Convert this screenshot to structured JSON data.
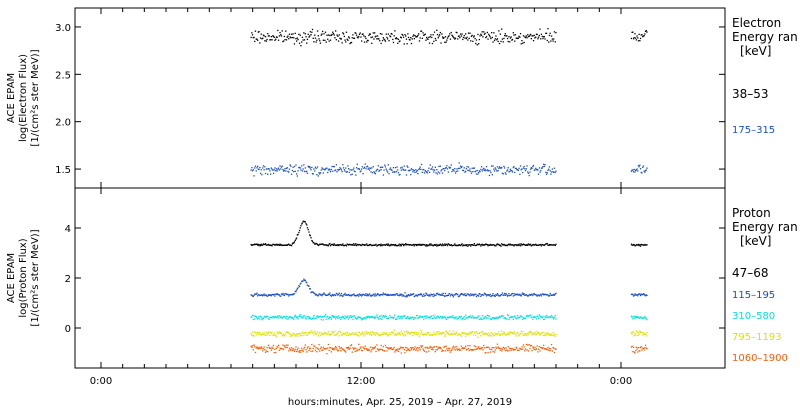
{
  "chart_data": [
    {
      "type": "scatter",
      "panel": "electron",
      "ylabel_lines": [
        "ACE EPAM",
        "log(Electron Flux)",
        "[1/(cm²s ster MeV)]"
      ],
      "legend_title_lines": [
        "Electron",
        "Energy ran",
        "[keV]"
      ],
      "yticks": [
        1.5,
        2.0,
        2.5,
        3.0
      ],
      "ylim": [
        1.3,
        3.2
      ],
      "series": [
        {
          "name": "38–53",
          "color": "#000000",
          "base": 2.9,
          "noise": 0.06,
          "segments": [
            [
              0.27,
              0.74
            ],
            [
              0.855,
              0.88
            ]
          ]
        },
        {
          "name": "175–315",
          "color": "#1a4fc2",
          "base": 1.5,
          "noise": 0.05,
          "segments": [
            [
              0.27,
              0.74
            ],
            [
              0.855,
              0.88
            ]
          ]
        }
      ]
    },
    {
      "type": "scatter",
      "panel": "proton",
      "ylabel_lines": [
        "ACE EPAM",
        "log(Proton Flux)",
        "[1/(cm²s ster MeV)]"
      ],
      "legend_title_lines": [
        "Proton",
        "Energy ran",
        "[keV]"
      ],
      "yticks": [
        0,
        2,
        4
      ],
      "ylim": [
        -1.6,
        5.6
      ],
      "series": [
        {
          "name": "47–68",
          "color": "#000000",
          "base": 3.35,
          "noise": 0.04,
          "spike": 0.95,
          "segments": [
            [
              0.27,
              0.74
            ],
            [
              0.855,
              0.88
            ]
          ]
        },
        {
          "name": "115–195",
          "color": "#1a4fc2",
          "base": 1.35,
          "noise": 0.06,
          "spike": 0.6,
          "segments": [
            [
              0.27,
              0.74
            ],
            [
              0.855,
              0.88
            ]
          ]
        },
        {
          "name": "310–580",
          "color": "#00e0e0",
          "base": 0.45,
          "noise": 0.08,
          "segments": [
            [
              0.27,
              0.74
            ],
            [
              0.855,
              0.88
            ]
          ]
        },
        {
          "name": "795–1193",
          "color": "#e0e000",
          "base": -0.2,
          "noise": 0.1,
          "segments": [
            [
              0.27,
              0.74
            ],
            [
              0.855,
              0.88
            ]
          ]
        },
        {
          "name": "1060–1900",
          "color": "#ff5a00",
          "base": -0.8,
          "noise": 0.14,
          "segments": [
            [
              0.27,
              0.74
            ],
            [
              0.855,
              0.88
            ]
          ]
        }
      ]
    }
  ],
  "xaxis": {
    "ticks": [
      "0:00",
      "12:00",
      "0:00"
    ],
    "label": "hours:minutes, Apr. 25, 2019 – Apr. 27, 2019"
  }
}
